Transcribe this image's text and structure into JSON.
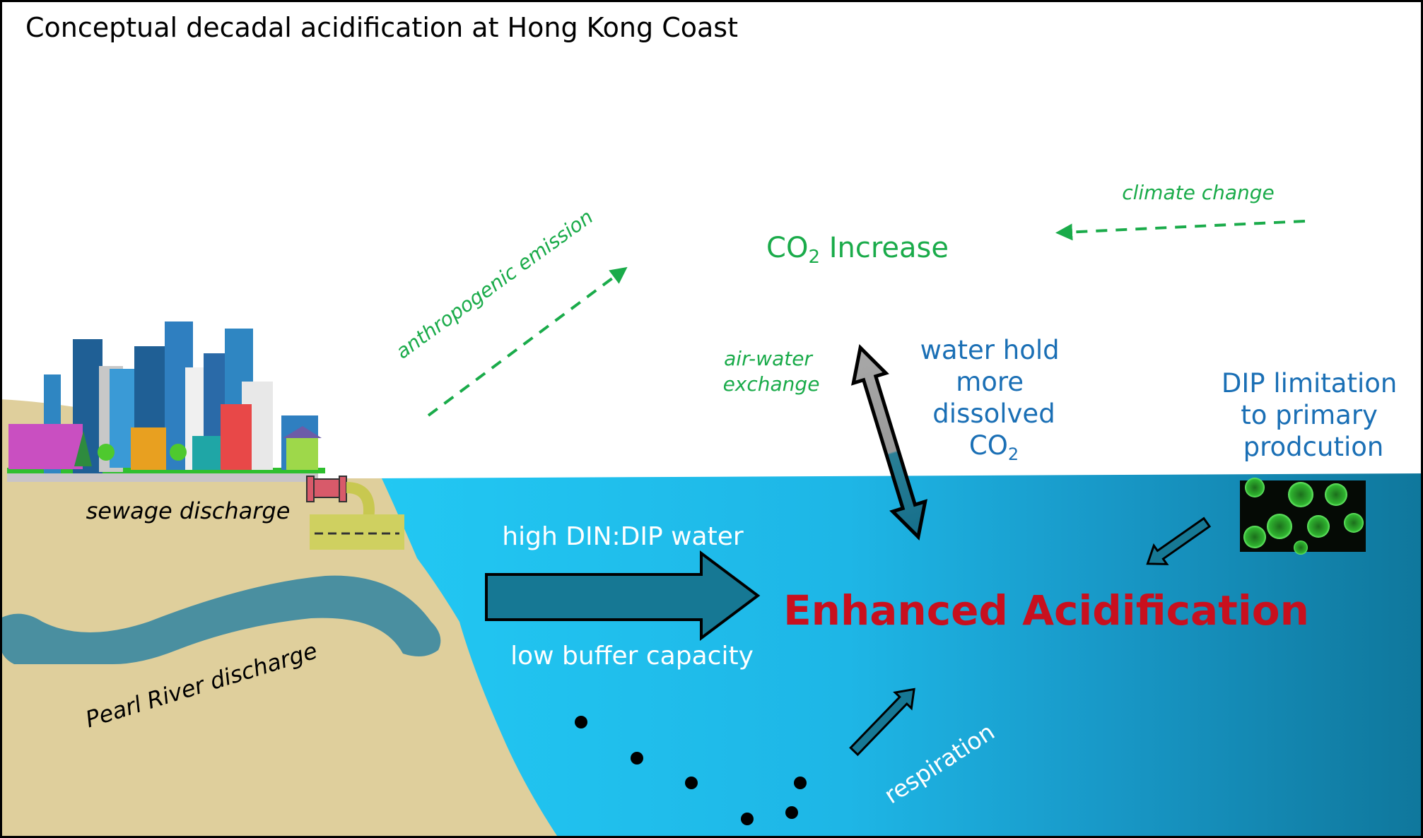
{
  "title": "Conceptual decadal acidification at Hong Kong Coast",
  "colors": {
    "sand": "#dfcf9c",
    "river": "#4a8fa0",
    "water_light": "#22c8f3",
    "water_dark": "#0f779c",
    "green_label": "#1aab4a",
    "blue_label": "#1a6fb5",
    "red_label": "#c8101e",
    "arrow_fill": "#167894",
    "exchange_arrow_top": "#a0a0a0"
  },
  "labels": {
    "co2_increase": {
      "main": "CO",
      "sub": "2",
      "rest": " Increase"
    },
    "climate_change": "climate change",
    "anthropogenic_emission": "anthropogenic emission",
    "air_water_exchange": [
      "air-water",
      "exchange"
    ],
    "water_hold": [
      "water hold",
      "more",
      "dissolved"
    ],
    "water_hold_co2": {
      "main": "CO",
      "sub": "2"
    },
    "dip_limitation": [
      "DIP limitation",
      "to primary",
      "prodcution"
    ],
    "sewage_discharge": "sewage discharge",
    "pearl_river_discharge": "Pearl River discharge",
    "high_din_dip": "high DIN:DIP water",
    "low_buffer": "low buffer capacity",
    "enhanced_acidification": "Enhanced Acidification",
    "respiration": "respiration"
  },
  "icons": [
    "city-skyline-icon",
    "sewage-pipe-icon",
    "phytoplankton-image",
    "organic-particle-dots"
  ]
}
